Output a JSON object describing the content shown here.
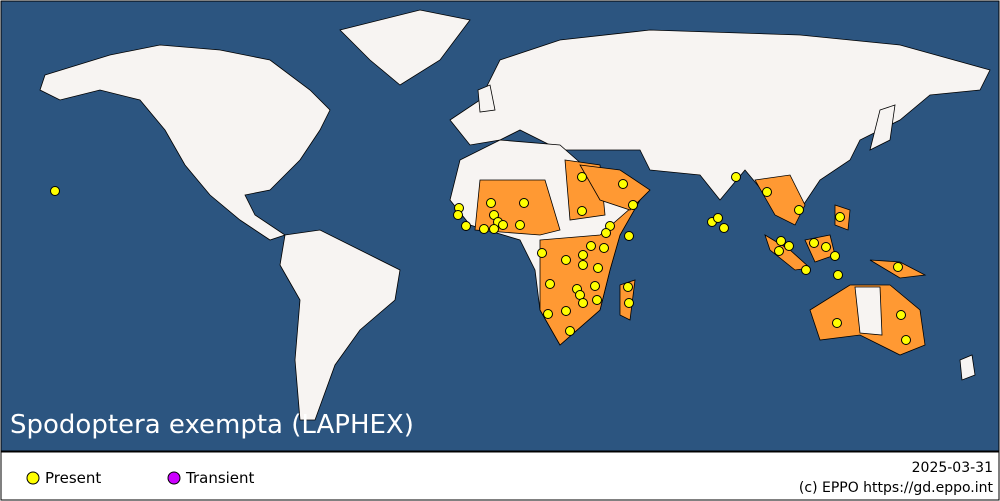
{
  "title": "Spodoptera exempta (LAPHEX)",
  "legend": [
    {
      "label": "Present",
      "color": "#ffff00"
    },
    {
      "label": "Transient",
      "color": "#cc00ff"
    }
  ],
  "date": "2025-03-31",
  "credit": "(c) EPPO https://gd.eppo.int"
}
